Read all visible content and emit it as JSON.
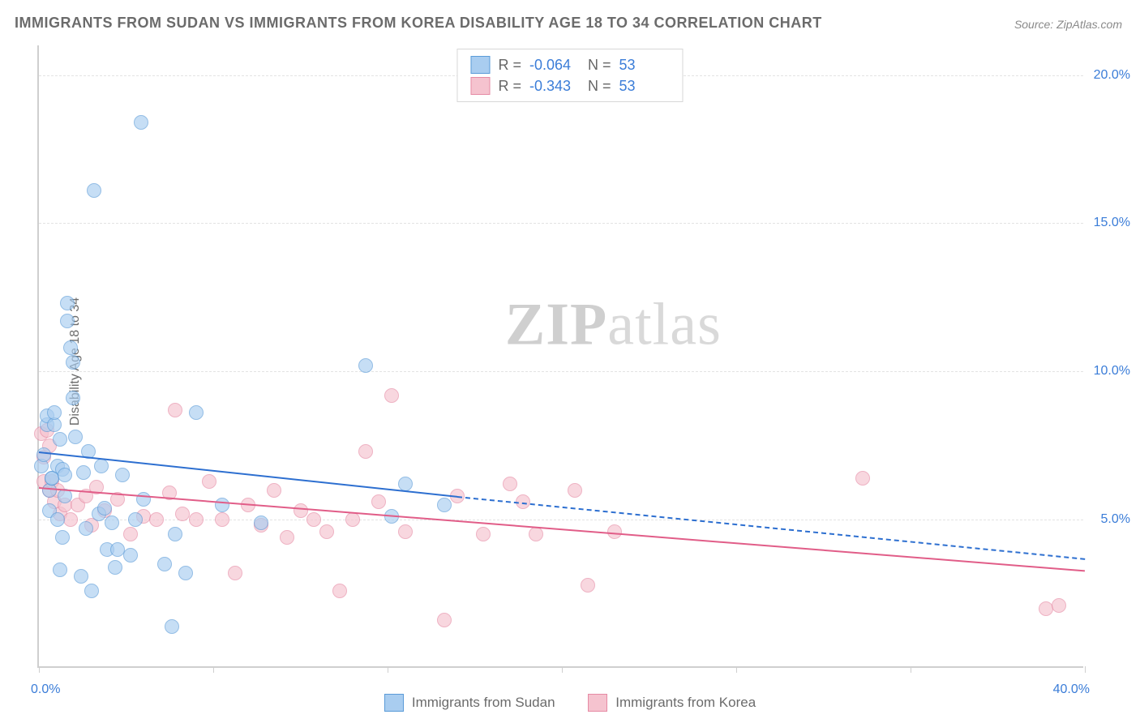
{
  "title": "IMMIGRANTS FROM SUDAN VS IMMIGRANTS FROM KOREA DISABILITY AGE 18 TO 34 CORRELATION CHART",
  "source": "Source: ZipAtlas.com",
  "ylabel": "Disability Age 18 to 34",
  "watermark_a": "ZIP",
  "watermark_b": "atlas",
  "chart": {
    "type": "scatter",
    "background_color": "#ffffff",
    "grid_color": "#e3e3e3",
    "axis_color": "#cfcfcf",
    "tick_label_color": "#3b7dd8",
    "text_color": "#6b6b6b",
    "title_fontsize": 18,
    "label_fontsize": 16,
    "xlim": [
      0,
      40
    ],
    "ylim": [
      0,
      21
    ],
    "xticks": [
      0,
      6.67,
      13.33,
      20,
      26.67,
      33.33,
      40
    ],
    "xtick_labels": {
      "0": "0.0%",
      "40": "40.0%"
    },
    "yticks": [
      5,
      10,
      15,
      20
    ],
    "ytick_labels": [
      "5.0%",
      "10.0%",
      "15.0%",
      "20.0%"
    ],
    "point_radius": 9,
    "point_border_width": 1.5,
    "point_opacity": 0.65
  },
  "series": {
    "sudan": {
      "label": "Immigrants from Sudan",
      "fill_color": "#a9cdf0",
      "border_color": "#5a9bd8",
      "trend_color": "#2d6fd0",
      "R_label": "R =",
      "R_value": "-0.064",
      "N_label": "N =",
      "N_value": "53",
      "trend": {
        "x1": 0,
        "y1": 7.3,
        "x2": 16,
        "y2": 5.8,
        "dash_x2": 40,
        "dash_y2": 3.7
      },
      "points": [
        [
          0.1,
          6.8
        ],
        [
          0.2,
          7.2
        ],
        [
          0.3,
          8.2
        ],
        [
          0.3,
          8.5
        ],
        [
          0.4,
          5.3
        ],
        [
          0.4,
          6.0
        ],
        [
          0.5,
          6.4
        ],
        [
          0.5,
          6.4
        ],
        [
          0.6,
          8.2
        ],
        [
          0.6,
          8.6
        ],
        [
          0.7,
          5.0
        ],
        [
          0.7,
          6.8
        ],
        [
          0.8,
          7.7
        ],
        [
          0.8,
          3.3
        ],
        [
          0.9,
          6.7
        ],
        [
          0.9,
          4.4
        ],
        [
          1.0,
          5.8
        ],
        [
          1.0,
          6.5
        ],
        [
          1.1,
          12.3
        ],
        [
          1.1,
          11.7
        ],
        [
          1.2,
          10.8
        ],
        [
          1.3,
          10.3
        ],
        [
          1.3,
          9.1
        ],
        [
          1.4,
          7.8
        ],
        [
          1.6,
          3.1
        ],
        [
          1.7,
          6.6
        ],
        [
          1.8,
          4.7
        ],
        [
          1.9,
          7.3
        ],
        [
          2.0,
          2.6
        ],
        [
          2.1,
          16.1
        ],
        [
          2.3,
          5.2
        ],
        [
          2.4,
          6.8
        ],
        [
          2.5,
          5.4
        ],
        [
          2.6,
          4.0
        ],
        [
          2.8,
          4.9
        ],
        [
          2.9,
          3.4
        ],
        [
          3.0,
          4.0
        ],
        [
          3.2,
          6.5
        ],
        [
          3.5,
          3.8
        ],
        [
          3.7,
          5.0
        ],
        [
          3.9,
          18.4
        ],
        [
          4.0,
          5.7
        ],
        [
          4.8,
          3.5
        ],
        [
          5.1,
          1.4
        ],
        [
          5.2,
          4.5
        ],
        [
          5.6,
          3.2
        ],
        [
          6.0,
          8.6
        ],
        [
          7.0,
          5.5
        ],
        [
          8.5,
          4.9
        ],
        [
          12.5,
          10.2
        ],
        [
          13.5,
          5.1
        ],
        [
          14.0,
          6.2
        ],
        [
          15.5,
          5.5
        ]
      ]
    },
    "korea": {
      "label": "Immigrants from Korea",
      "fill_color": "#f5c3cf",
      "border_color": "#e68aa4",
      "trend_color": "#e15d88",
      "R_label": "R =",
      "R_value": "-0.343",
      "N_label": "N =",
      "N_value": "53",
      "trend": {
        "x1": 0,
        "y1": 6.1,
        "x2": 40,
        "y2": 3.3
      },
      "points": [
        [
          0.1,
          7.9
        ],
        [
          0.2,
          6.3
        ],
        [
          0.2,
          7.1
        ],
        [
          0.3,
          8.0
        ],
        [
          0.4,
          7.5
        ],
        [
          0.4,
          6.0
        ],
        [
          0.5,
          6.3
        ],
        [
          0.6,
          5.6
        ],
        [
          0.7,
          6.0
        ],
        [
          0.8,
          5.2
        ],
        [
          1.0,
          5.5
        ],
        [
          1.2,
          5.0
        ],
        [
          1.5,
          5.5
        ],
        [
          1.8,
          5.8
        ],
        [
          2.0,
          4.8
        ],
        [
          2.2,
          6.1
        ],
        [
          2.5,
          5.3
        ],
        [
          3.0,
          5.7
        ],
        [
          3.5,
          4.5
        ],
        [
          4.0,
          5.1
        ],
        [
          4.5,
          5.0
        ],
        [
          5.0,
          5.9
        ],
        [
          5.2,
          8.7
        ],
        [
          5.5,
          5.2
        ],
        [
          6.0,
          5.0
        ],
        [
          6.5,
          6.3
        ],
        [
          7.0,
          5.0
        ],
        [
          7.5,
          3.2
        ],
        [
          8.0,
          5.5
        ],
        [
          8.5,
          4.8
        ],
        [
          9.0,
          6.0
        ],
        [
          9.5,
          4.4
        ],
        [
          10.0,
          5.3
        ],
        [
          10.5,
          5.0
        ],
        [
          11.0,
          4.6
        ],
        [
          11.5,
          2.6
        ],
        [
          12.0,
          5.0
        ],
        [
          12.5,
          7.3
        ],
        [
          13.0,
          5.6
        ],
        [
          13.5,
          9.2
        ],
        [
          14.0,
          4.6
        ],
        [
          15.5,
          1.6
        ],
        [
          16.0,
          5.8
        ],
        [
          17.0,
          4.5
        ],
        [
          18.0,
          6.2
        ],
        [
          18.5,
          5.6
        ],
        [
          19.0,
          4.5
        ],
        [
          20.5,
          6.0
        ],
        [
          21.0,
          2.8
        ],
        [
          22.0,
          4.6
        ],
        [
          31.5,
          6.4
        ],
        [
          38.5,
          2.0
        ],
        [
          39.0,
          2.1
        ]
      ]
    }
  }
}
